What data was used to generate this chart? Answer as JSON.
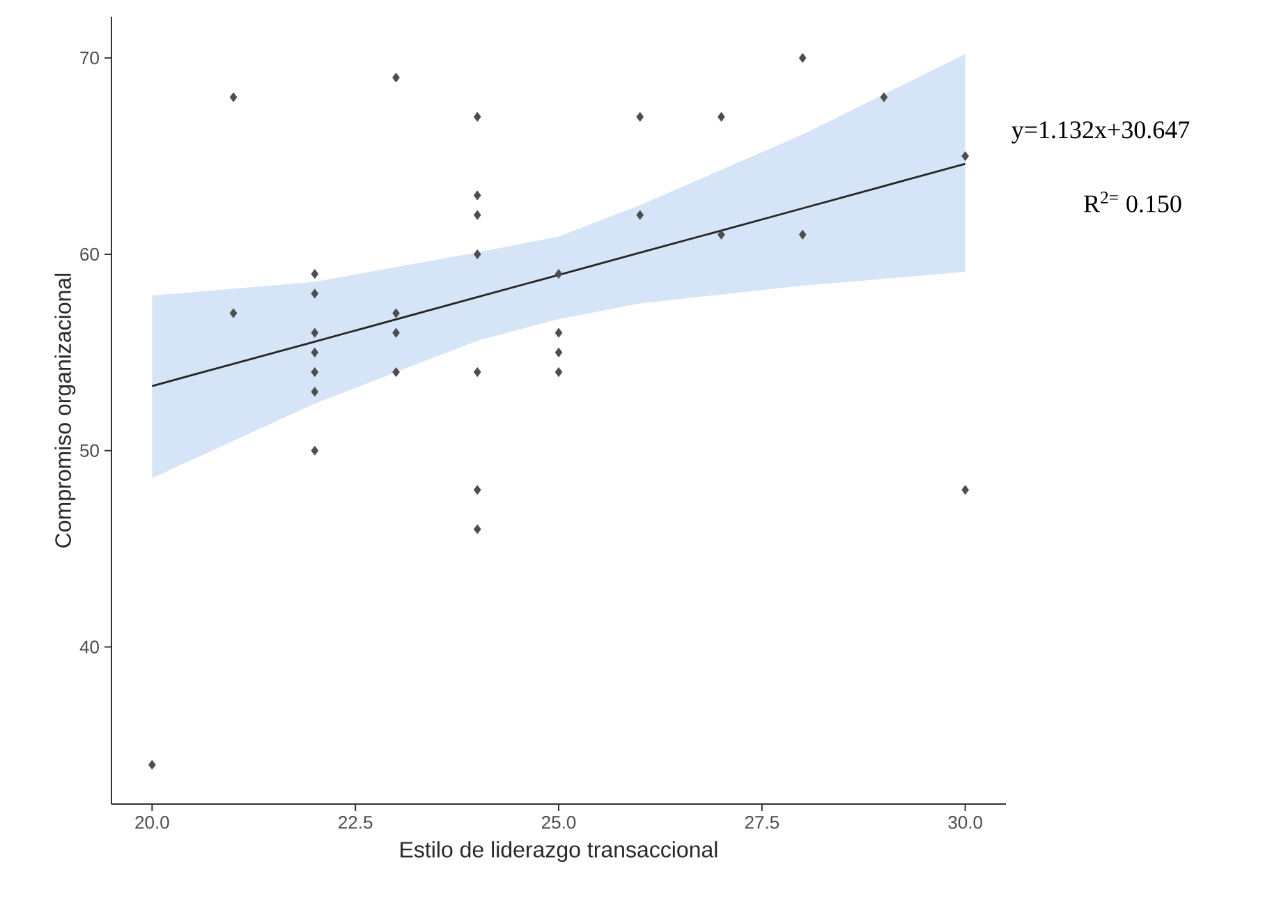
{
  "chart_data": {
    "type": "scatter",
    "xlabel": "Estilo de liderazgo transaccional",
    "ylabel": "Compromiso organizacional",
    "xlim": [
      19.5,
      30.5
    ],
    "ylim": [
      32,
      72.1
    ],
    "xticks": [
      {
        "value": 20,
        "label": "20.0"
      },
      {
        "value": 22.5,
        "label": "22.5"
      },
      {
        "value": 25,
        "label": "25.0"
      },
      {
        "value": 27.5,
        "label": "27.5"
      },
      {
        "value": 30,
        "label": "30.0"
      }
    ],
    "yticks": [
      40,
      50,
      60,
      70
    ],
    "grid": false,
    "marker": "diamond",
    "series": [
      {
        "type": "line",
        "color": "#262626",
        "line_style": "solid",
        "marker": "none",
        "x": [
          20,
          22,
          24,
          25,
          26,
          28,
          30
        ],
        "values": [
          53.29,
          55.55,
          57.82,
          58.95,
          60.08,
          62.34,
          64.61
        ],
        "lower": [
          48.6,
          52.4,
          55.6,
          56.7,
          57.5,
          58.4,
          59.1
        ],
        "upper": [
          57.9,
          58.6,
          60.1,
          60.9,
          62.5,
          66.1,
          70.2
        ]
      },
      {
        "color": "#4d4d4d",
        "x": [
          20,
          21,
          21,
          22,
          22,
          22,
          22,
          22,
          22,
          22,
          23,
          23,
          23,
          23,
          24,
          24,
          24,
          24,
          24,
          24,
          24,
          25,
          25,
          25,
          25,
          26,
          26,
          27,
          27,
          28,
          28,
          29,
          30,
          30
        ],
        "values": [
          34,
          68,
          57,
          59,
          58,
          56,
          55,
          54,
          53,
          50,
          69,
          57,
          56,
          54,
          67,
          63,
          62,
          60,
          54,
          48,
          46,
          59,
          56,
          55,
          54,
          67,
          62,
          67,
          61,
          70,
          61,
          68,
          65,
          48
        ]
      }
    ],
    "annotations": [
      "y=1.132x+30.647",
      "R$^{2=}$ 0.150"
    ]
  }
}
